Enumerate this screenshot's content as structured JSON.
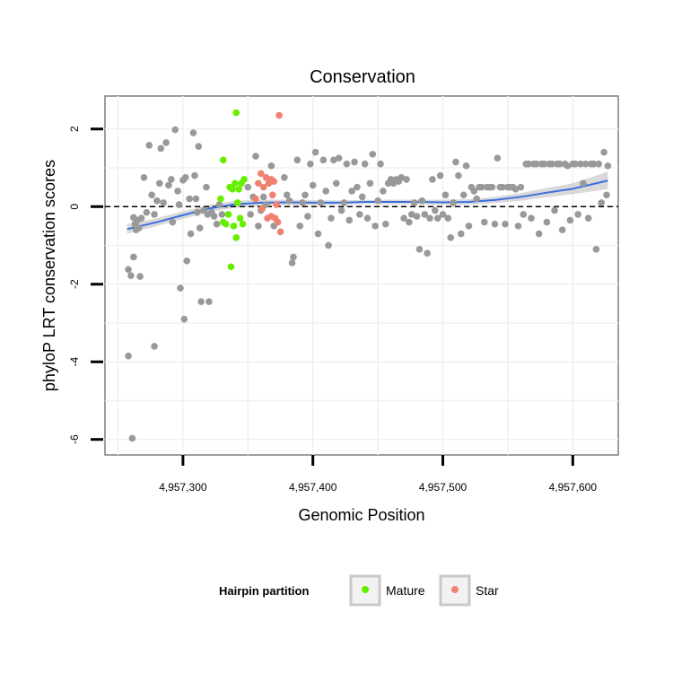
{
  "chart_data": {
    "type": "scatter",
    "title": "Conservation",
    "xlabel": "Genomic Position",
    "ylabel": "phyloP LRT conservation scores",
    "xlim": [
      4957240,
      4957635
    ],
    "ylim": [
      -6.4,
      2.85
    ],
    "x_ticks": [
      4957300,
      4957400,
      4957500,
      4957600
    ],
    "x_tick_labels": [
      "4,957,300",
      "4,957,400",
      "4,957,500",
      "4,957,600"
    ],
    "y_ticks": [
      -6,
      -4,
      -2,
      0,
      2
    ],
    "y_tick_labels": [
      "-6",
      "-4",
      "-2",
      "0",
      "2"
    ],
    "reference_line": {
      "y": 0,
      "style": "dashed"
    },
    "grid": true,
    "legend": {
      "title": "Hairpin partition",
      "placement": "bottom",
      "entries": [
        {
          "label": "Mature",
          "color": "#66ee00"
        },
        {
          "label": "Star",
          "color": "#f08070"
        }
      ]
    },
    "colors": {
      "other": "#999999",
      "mature": "#66ee00",
      "star": "#f08070",
      "smooth": "#3b6fe0",
      "band": "#cccccc"
    },
    "series": [
      {
        "group": "other",
        "points": [
          [
            4957258,
            -3.85
          ],
          [
            4957261,
            -5.97
          ],
          [
            4957258,
            -1.62
          ],
          [
            4957260,
            -1.78
          ],
          [
            4957262,
            -1.3
          ],
          [
            4957263,
            -0.45
          ],
          [
            4957264,
            -0.6
          ],
          [
            4957262,
            -0.28
          ],
          [
            4957265,
            -0.35
          ],
          [
            4957266,
            -0.55
          ],
          [
            4957267,
            -1.8
          ],
          [
            4957268,
            -0.3
          ],
          [
            4957270,
            0.75
          ],
          [
            4957272,
            -0.15
          ],
          [
            4957274,
            1.58
          ],
          [
            4957276,
            0.3
          ],
          [
            4957278,
            -0.2
          ],
          [
            4957278,
            -3.6
          ],
          [
            4957280,
            0.15
          ],
          [
            4957282,
            0.6
          ],
          [
            4957283,
            1.5
          ],
          [
            4957285,
            0.1
          ],
          [
            4957287,
            1.65
          ],
          [
            4957289,
            0.55
          ],
          [
            4957291,
            0.7
          ],
          [
            4957292,
            -0.4
          ],
          [
            4957294,
            1.98
          ],
          [
            4957296,
            0.4
          ],
          [
            4957297,
            0.05
          ],
          [
            4957298,
            -2.1
          ],
          [
            4957300,
            0.68
          ],
          [
            4957301,
            -2.9
          ],
          [
            4957302,
            0.75
          ],
          [
            4957303,
            -1.4
          ],
          [
            4957305,
            0.2
          ],
          [
            4957306,
            -0.7
          ],
          [
            4957308,
            1.9
          ],
          [
            4957309,
            0.8
          ],
          [
            4957310,
            0.2
          ],
          [
            4957311,
            -0.15
          ],
          [
            4957312,
            1.55
          ],
          [
            4957313,
            -0.55
          ],
          [
            4957314,
            -2.45
          ],
          [
            4957316,
            -0.1
          ],
          [
            4957318,
            0.5
          ],
          [
            4957319,
            -0.2
          ],
          [
            4957320,
            -2.45
          ],
          [
            4957322,
            -0.15
          ],
          [
            4957324,
            -0.25
          ],
          [
            4957326,
            -0.45
          ],
          [
            4957328,
            0.05
          ],
          [
            4957330,
            -0.2
          ],
          [
            4957350,
            0.5
          ],
          [
            4957352,
            -0.2
          ],
          [
            4957354,
            0.25
          ],
          [
            4957356,
            1.3
          ],
          [
            4957358,
            -0.5
          ],
          [
            4957360,
            -0.1
          ],
          [
            4957362,
            0.25
          ],
          [
            4957364,
            0.05
          ],
          [
            4957368,
            1.05
          ],
          [
            4957370,
            -0.5
          ],
          [
            4957378,
            0.75
          ],
          [
            4957380,
            0.3
          ],
          [
            4957382,
            0.15
          ],
          [
            4957384,
            -1.45
          ],
          [
            4957385,
            -1.3
          ],
          [
            4957388,
            1.2
          ],
          [
            4957390,
            -0.5
          ],
          [
            4957392,
            0.1
          ],
          [
            4957394,
            0.3
          ],
          [
            4957396,
            -0.25
          ],
          [
            4957398,
            1.1
          ],
          [
            4957400,
            0.55
          ],
          [
            4957402,
            1.4
          ],
          [
            4957404,
            -0.7
          ],
          [
            4957406,
            0.1
          ],
          [
            4957408,
            1.2
          ],
          [
            4957410,
            0.4
          ],
          [
            4957412,
            -1.0
          ],
          [
            4957414,
            -0.3
          ],
          [
            4957416,
            1.2
          ],
          [
            4957418,
            0.6
          ],
          [
            4957420,
            1.25
          ],
          [
            4957422,
            -0.1
          ],
          [
            4957424,
            0.1
          ],
          [
            4957426,
            1.1
          ],
          [
            4957428,
            -0.35
          ],
          [
            4957430,
            0.4
          ],
          [
            4957432,
            1.15
          ],
          [
            4957434,
            0.5
          ],
          [
            4957436,
            -0.2
          ],
          [
            4957438,
            0.25
          ],
          [
            4957440,
            1.1
          ],
          [
            4957442,
            -0.3
          ],
          [
            4957444,
            0.6
          ],
          [
            4957446,
            1.35
          ],
          [
            4957448,
            -0.5
          ],
          [
            4957450,
            0.15
          ],
          [
            4957452,
            1.1
          ],
          [
            4957454,
            0.4
          ],
          [
            4957456,
            -0.45
          ],
          [
            4957458,
            0.6
          ],
          [
            4957460,
            0.7
          ],
          [
            4957462,
            0.6
          ],
          [
            4957464,
            0.7
          ],
          [
            4957466,
            0.65
          ],
          [
            4957468,
            0.75
          ],
          [
            4957470,
            -0.3
          ],
          [
            4957472,
            0.7
          ],
          [
            4957474,
            -0.4
          ],
          [
            4957476,
            -0.2
          ],
          [
            4957478,
            0.1
          ],
          [
            4957480,
            -0.25
          ],
          [
            4957482,
            -1.1
          ],
          [
            4957484,
            0.15
          ],
          [
            4957486,
            -0.2
          ],
          [
            4957488,
            -1.2
          ],
          [
            4957490,
            -0.3
          ],
          [
            4957492,
            0.7
          ],
          [
            4957494,
            -0.1
          ],
          [
            4957496,
            -0.3
          ],
          [
            4957498,
            0.8
          ],
          [
            4957500,
            -0.2
          ],
          [
            4957502,
            0.3
          ],
          [
            4957504,
            -0.3
          ],
          [
            4957506,
            -0.8
          ],
          [
            4957508,
            0.1
          ],
          [
            4957510,
            1.15
          ],
          [
            4957512,
            0.8
          ],
          [
            4957514,
            -0.7
          ],
          [
            4957516,
            0.3
          ],
          [
            4957518,
            1.05
          ],
          [
            4957520,
            -0.5
          ],
          [
            4957522,
            0.5
          ],
          [
            4957524,
            0.4
          ],
          [
            4957526,
            0.2
          ],
          [
            4957528,
            0.5
          ],
          [
            4957530,
            0.5
          ],
          [
            4957532,
            -0.4
          ],
          [
            4957534,
            0.5
          ],
          [
            4957536,
            0.5
          ],
          [
            4957538,
            0.5
          ],
          [
            4957540,
            -0.45
          ],
          [
            4957542,
            1.25
          ],
          [
            4957544,
            0.5
          ],
          [
            4957546,
            0.5
          ],
          [
            4957548,
            -0.45
          ],
          [
            4957550,
            0.5
          ],
          [
            4957552,
            0.5
          ],
          [
            4957554,
            0.5
          ],
          [
            4957556,
            0.45
          ],
          [
            4957558,
            -0.5
          ],
          [
            4957560,
            0.5
          ],
          [
            4957562,
            -0.2
          ],
          [
            4957564,
            1.1
          ],
          [
            4957566,
            1.1
          ],
          [
            4957568,
            -0.3
          ],
          [
            4957570,
            1.1
          ],
          [
            4957572,
            1.1
          ],
          [
            4957574,
            -0.7
          ],
          [
            4957576,
            1.1
          ],
          [
            4957578,
            1.1
          ],
          [
            4957580,
            -0.4
          ],
          [
            4957582,
            1.1
          ],
          [
            4957584,
            1.1
          ],
          [
            4957586,
            -0.1
          ],
          [
            4957588,
            1.1
          ],
          [
            4957590,
            1.1
          ],
          [
            4957592,
            -0.6
          ],
          [
            4957594,
            1.1
          ],
          [
            4957596,
            1.05
          ],
          [
            4957598,
            -0.35
          ],
          [
            4957600,
            1.1
          ],
          [
            4957602,
            1.1
          ],
          [
            4957604,
            -0.2
          ],
          [
            4957606,
            1.1
          ],
          [
            4957608,
            0.6
          ],
          [
            4957610,
            1.1
          ],
          [
            4957612,
            -0.3
          ],
          [
            4957614,
            1.1
          ],
          [
            4957616,
            1.1
          ],
          [
            4957618,
            -1.1
          ],
          [
            4957620,
            1.1
          ],
          [
            4957622,
            0.1
          ],
          [
            4957624,
            1.4
          ],
          [
            4957626,
            0.3
          ],
          [
            4957627,
            1.05
          ]
        ]
      },
      {
        "group": "mature",
        "name": "Mature",
        "points": [
          [
            4957329,
            0.2
          ],
          [
            4957331,
            1.2
          ],
          [
            4957331,
            -0.4
          ],
          [
            4957333,
            -0.45
          ],
          [
            4957335,
            -0.2
          ],
          [
            4957336,
            0.5
          ],
          [
            4957337,
            -1.55
          ],
          [
            4957338,
            0.45
          ],
          [
            4957339,
            -0.5
          ],
          [
            4957340,
            0.6
          ],
          [
            4957341,
            2.42
          ],
          [
            4957341,
            -0.8
          ],
          [
            4957342,
            0.1
          ],
          [
            4957343,
            0.45
          ],
          [
            4957344,
            -0.3
          ],
          [
            4957345,
            0.6
          ],
          [
            4957346,
            -0.45
          ],
          [
            4957347,
            0.7
          ]
        ]
      },
      {
        "group": "star",
        "name": "Star",
        "points": [
          [
            4957356,
            0.2
          ],
          [
            4957358,
            0.6
          ],
          [
            4957360,
            0.85
          ],
          [
            4957361,
            -0.05
          ],
          [
            4957362,
            0.5
          ],
          [
            4957364,
            0.75
          ],
          [
            4957365,
            -0.3
          ],
          [
            4957366,
            0.6
          ],
          [
            4957368,
            0.7
          ],
          [
            4957368,
            -0.25
          ],
          [
            4957369,
            0.3
          ],
          [
            4957370,
            0.65
          ],
          [
            4957371,
            -0.3
          ],
          [
            4957372,
            0.05
          ],
          [
            4957373,
            -0.4
          ],
          [
            4957374,
            2.35
          ],
          [
            4957375,
            -0.65
          ]
        ]
      }
    ],
    "smooth": {
      "x": [
        4957257,
        4957280,
        4957300,
        4957320,
        4957340,
        4957360,
        4957380,
        4957400,
        4957420,
        4957440,
        4957460,
        4957480,
        4957500,
        4957520,
        4957540,
        4957560,
        4957580,
        4957600,
        4957627
      ],
      "y": [
        -0.58,
        -0.4,
        -0.22,
        -0.05,
        0.06,
        0.1,
        0.11,
        0.1,
        0.1,
        0.12,
        0.12,
        0.12,
        0.11,
        0.12,
        0.17,
        0.25,
        0.36,
        0.46,
        0.67
      ],
      "lo": [
        -0.7,
        -0.5,
        -0.32,
        -0.14,
        -0.03,
        0.02,
        0.04,
        0.04,
        0.05,
        0.07,
        0.06,
        0.06,
        0.05,
        0.05,
        0.09,
        0.15,
        0.24,
        0.32,
        0.45
      ],
      "hi": [
        -0.45,
        -0.3,
        -0.12,
        0.04,
        0.15,
        0.18,
        0.18,
        0.17,
        0.16,
        0.17,
        0.18,
        0.18,
        0.18,
        0.19,
        0.25,
        0.35,
        0.48,
        0.6,
        0.9
      ]
    }
  }
}
